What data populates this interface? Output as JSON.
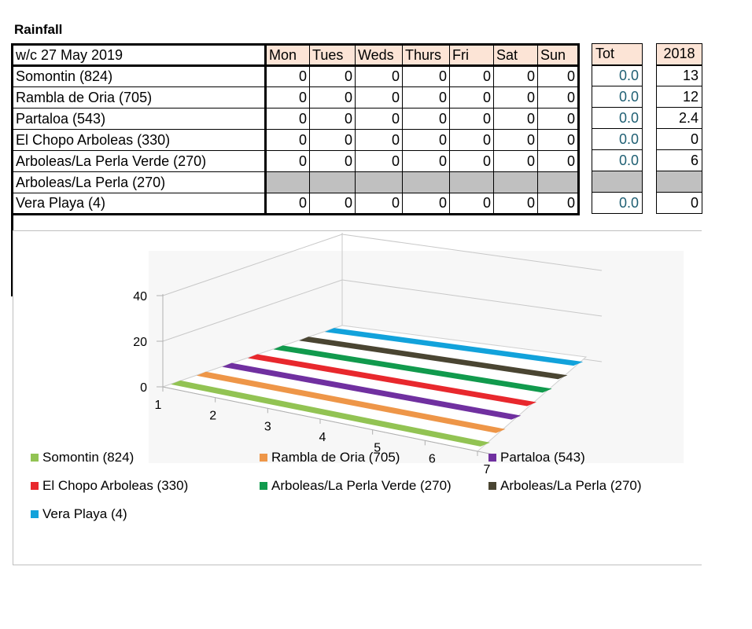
{
  "title": "Rainfall",
  "table": {
    "header_label": "w/c 27 May 2019",
    "days": [
      "Mon",
      "Tues",
      "Weds",
      "Thurs",
      "Fri",
      "Sat",
      "Sun"
    ],
    "rows": [
      {
        "name": "Somontin (824)",
        "values": [
          "0",
          "0",
          "0",
          "0",
          "0",
          "0",
          "0"
        ],
        "tot": "0.0",
        "y2018": "13"
      },
      {
        "name": "Rambla de Oria (705)",
        "values": [
          "0",
          "0",
          "0",
          "0",
          "0",
          "0",
          "0"
        ],
        "tot": "0.0",
        "y2018": "12"
      },
      {
        "name": "Partaloa (543)",
        "values": [
          "0",
          "0",
          "0",
          "0",
          "0",
          "0",
          "0"
        ],
        "tot": "0.0",
        "y2018": "2.4"
      },
      {
        "name": "El Chopo Arboleas (330)",
        "values": [
          "0",
          "0",
          "0",
          "0",
          "0",
          "0",
          "0"
        ],
        "tot": "0.0",
        "y2018": "0"
      },
      {
        "name": "Arboleas/La Perla Verde (270)",
        "values": [
          "0",
          "0",
          "0",
          "0",
          "0",
          "0",
          "0"
        ],
        "tot": "0.0",
        "y2018": "6"
      },
      {
        "name": "Arboleas/La Perla (270)",
        "values": [
          "",
          "",
          "",
          "",
          "",
          "",
          ""
        ],
        "tot": "",
        "y2018": "",
        "grey": true
      },
      {
        "name": "Vera Playa (4)",
        "values": [
          "0",
          "0",
          "0",
          "0",
          "0",
          "0",
          "0"
        ],
        "tot": "0.0",
        "y2018": "0"
      }
    ],
    "tot_label": "Tot",
    "year_label": "2018"
  },
  "chart_data": {
    "type": "line",
    "title": "",
    "xlabel": "",
    "ylabel": "",
    "x": [
      1,
      2,
      3,
      4,
      5,
      6,
      7
    ],
    "y_ticks": [
      "0",
      "20",
      "40"
    ],
    "x_ticks": [
      "1",
      "2",
      "3",
      "4",
      "5",
      "6",
      "7"
    ],
    "ylim": [
      0,
      40
    ],
    "legend_placement": "bottom",
    "series": [
      {
        "name": "Somontin (824)",
        "color": "#92c353",
        "values": [
          0,
          0,
          0,
          0,
          0,
          0,
          0
        ]
      },
      {
        "name": "Rambla de Oria (705)",
        "color": "#ee9648",
        "values": [
          0,
          0,
          0,
          0,
          0,
          0,
          0
        ]
      },
      {
        "name": "Partaloa (543)",
        "color": "#7030a0",
        "values": [
          0,
          0,
          0,
          0,
          0,
          0,
          0
        ]
      },
      {
        "name": "El Chopo Arboleas (330)",
        "color": "#e8282d",
        "values": [
          0,
          0,
          0,
          0,
          0,
          0,
          0
        ]
      },
      {
        "name": "Arboleas/La Perla Verde (270)",
        "color": "#119a4d",
        "values": [
          0,
          0,
          0,
          0,
          0,
          0,
          0
        ]
      },
      {
        "name": "Arboleas/La Perla (270)",
        "color": "#4a4532",
        "values": [
          null,
          null,
          null,
          null,
          null,
          null,
          null
        ]
      },
      {
        "name": "Vera Playa (4)",
        "color": "#12a2db",
        "values": [
          0,
          0,
          0,
          0,
          0,
          0,
          0
        ]
      }
    ]
  }
}
